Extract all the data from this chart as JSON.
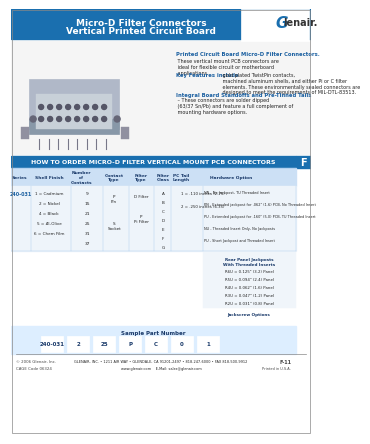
{
  "title_line1": "Micro-D Filter Connectors",
  "title_line2": "Vertical Printed Circuit Board",
  "header_bg": "#1a6faf",
  "header_text_color": "#ffffff",
  "body_bg": "#ffffff",
  "table_header_bg": "#1a6faf",
  "table_row_bg": "#ddeeff",
  "table_alt_bg": "#ffffff",
  "how_to_order_title": "HOW TO ORDER MICRO-D FILTER VERTICAL MOUNT PCB CONNECTORS",
  "series_label": "Series",
  "shell_finish_label": "Shell Finish",
  "num_contacts_label": "Number\nof\nContacts",
  "contact_type_label": "Contact\nType",
  "filter_type_label": "Filter\nType",
  "filter_class_label": "Filter\nClass",
  "pc_tail_length_label": "PC Tail\nLength",
  "hardware_option_label": "Hardware Option",
  "series_value": "240-031",
  "shell_finish_options": [
    "1 = Cadmium",
    "2 = Nickel",
    "4 = Black",
    "5 = Æ-Olive",
    "6 = Chem Film"
  ],
  "num_contacts_options": [
    "9",
    "15",
    "21",
    "25",
    "31",
    "37"
  ],
  "contact_type_options": [
    "P\nPin",
    "S\nSocket"
  ],
  "filter_type_options": [
    "D Filter",
    "P\nPi Filter"
  ],
  "filter_class_options": [
    "A",
    "B",
    "C",
    "D",
    "E",
    "F",
    "G"
  ],
  "pc_tail_options": [
    "1 = .110 inches (2.75)",
    "2 = .250 inches (6.35)"
  ],
  "hardware_options_main": [
    "NN - No Jackpost, TU Threaded Insert",
    "PN - Extended jackpost for .062\" (1.6) PCB, No Threaded Insert",
    "PU - Extended jackpost for .160\" (5.0) PCB, TU Threaded Insert",
    "NU - Threaded Insert Only, No Jackposts",
    "PU - Short Jackpost and Threaded Insert"
  ],
  "rear_panel_title": "Rear Panel Jackposts\nWith Threaded Inserts",
  "rear_panel_options": [
    "R6U = 0.125\" (3.2) Panel",
    "R5U = 0.094\" (2.4) Panel",
    "R4U = 0.062\" (1.6) Panel",
    "R3U = 0.047\" (1.2) Panel",
    "R2U = 0.031\" (0.8) Panel"
  ],
  "jackscrew_title": "Jackscrew Options",
  "sample_part_title": "Sample Part Number",
  "sample_part_diagram": [
    "240-031",
    "2",
    "25",
    "P",
    "C",
    "0",
    "1"
  ],
  "sample_part_labels": [
    "",
    "",
    "",
    "",
    "",
    "",
    ""
  ],
  "footer_company": "GLENAIR, INC. • 1211 AIR WAY • GLENDALE, CA 91201-2497 • 818-247-6000 • FAX 818-500-9912",
  "footer_website": "www.glenair.com",
  "footer_email": "E-Mail: sales@glenair.com",
  "footer_page": "F-11",
  "footer_year": "© 2006 Glenair, Inc.",
  "footer_cage": "CAGE Code 06324",
  "description_title1": "Printed Circuit Board Micro-D Filter Connectors.",
  "description_text1": " These vertical mount PCB connectors are ideal for flexible circuit or motherboard applications.",
  "description_title2": "Key Features include",
  "description_text2": " gold plated TwistPin contacts, machined aluminum shells, and either Pi or C filter elements. These environmentally sealed connectors are designed to meet the requirements of MIL-DTL-83513.",
  "description_title3": "Integral Board Standoffs and Pre-Tinned Tails",
  "description_text3": " – These connectors are solder dipped (63/37 Sn/Pb) and feature a full complement of mounting hardware options.",
  "f_tab_color": "#1a6faf",
  "light_blue_bg": "#cce0f5"
}
